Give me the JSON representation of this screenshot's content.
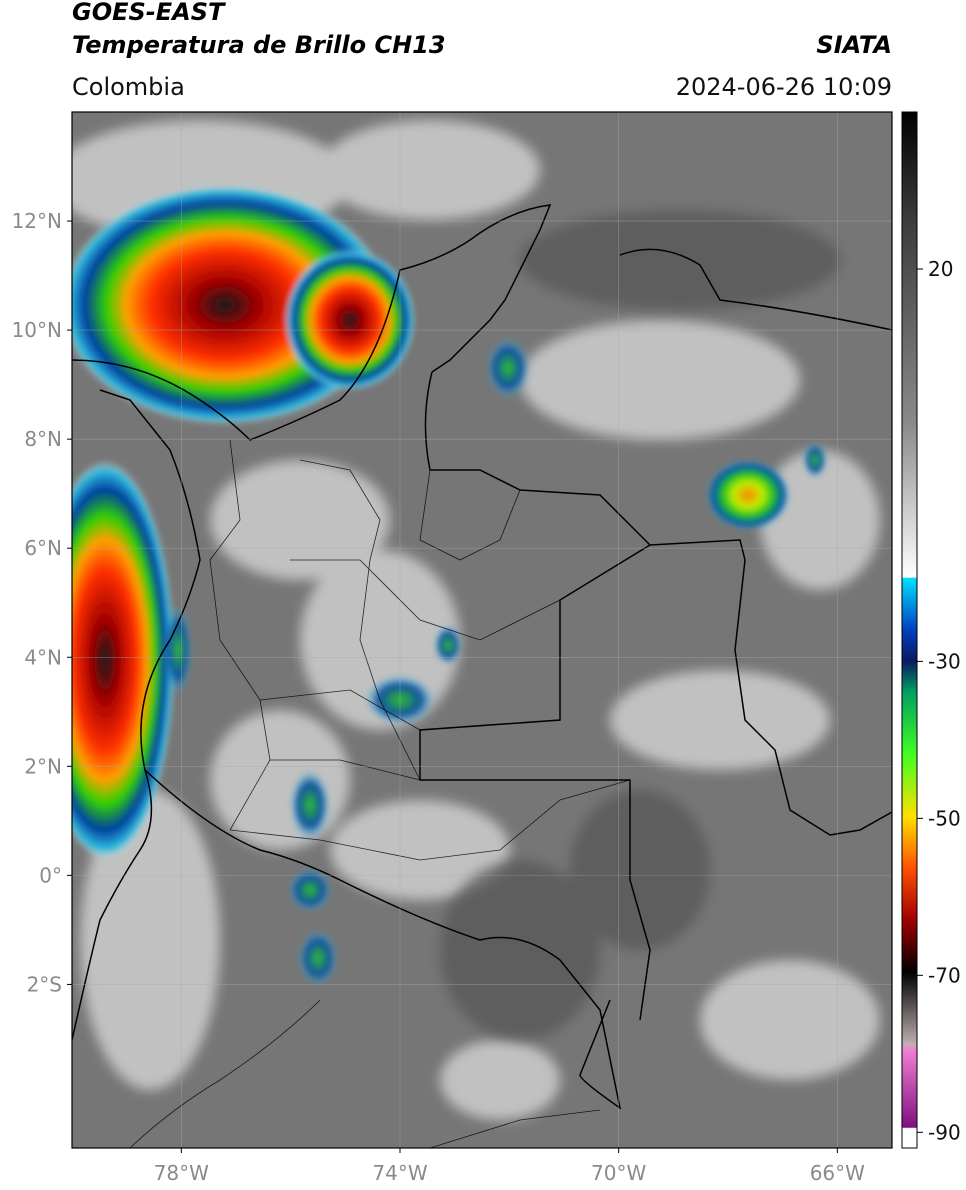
{
  "header": {
    "title": "GOES-EAST",
    "subtitle": "Temperatura de Brillo CH13",
    "source": "SIATA",
    "region": "Colombia",
    "datetime": "2024-06-26 10:09"
  },
  "map": {
    "xlim": [
      -80,
      -65
    ],
    "ylim": [
      -5,
      14
    ],
    "xticks": [
      {
        "value": -78,
        "label": "78°W"
      },
      {
        "value": -74,
        "label": "74°W"
      },
      {
        "value": -70,
        "label": "70°W"
      },
      {
        "value": -66,
        "label": "66°W"
      }
    ],
    "yticks": [
      {
        "value": 12,
        "label": "12°N"
      },
      {
        "value": 10,
        "label": "10°N"
      },
      {
        "value": 8,
        "label": "8°N"
      },
      {
        "value": 6,
        "label": "6°N"
      },
      {
        "value": 4,
        "label": "4°N"
      },
      {
        "value": 2,
        "label": "2°N"
      },
      {
        "value": 0,
        "label": "0°"
      },
      {
        "value": -2,
        "label": "2°S"
      }
    ],
    "colorbar": {
      "lim": [
        -92,
        40
      ],
      "ticks": [
        20,
        -30,
        -50,
        -70,
        -90
      ]
    }
  }
}
